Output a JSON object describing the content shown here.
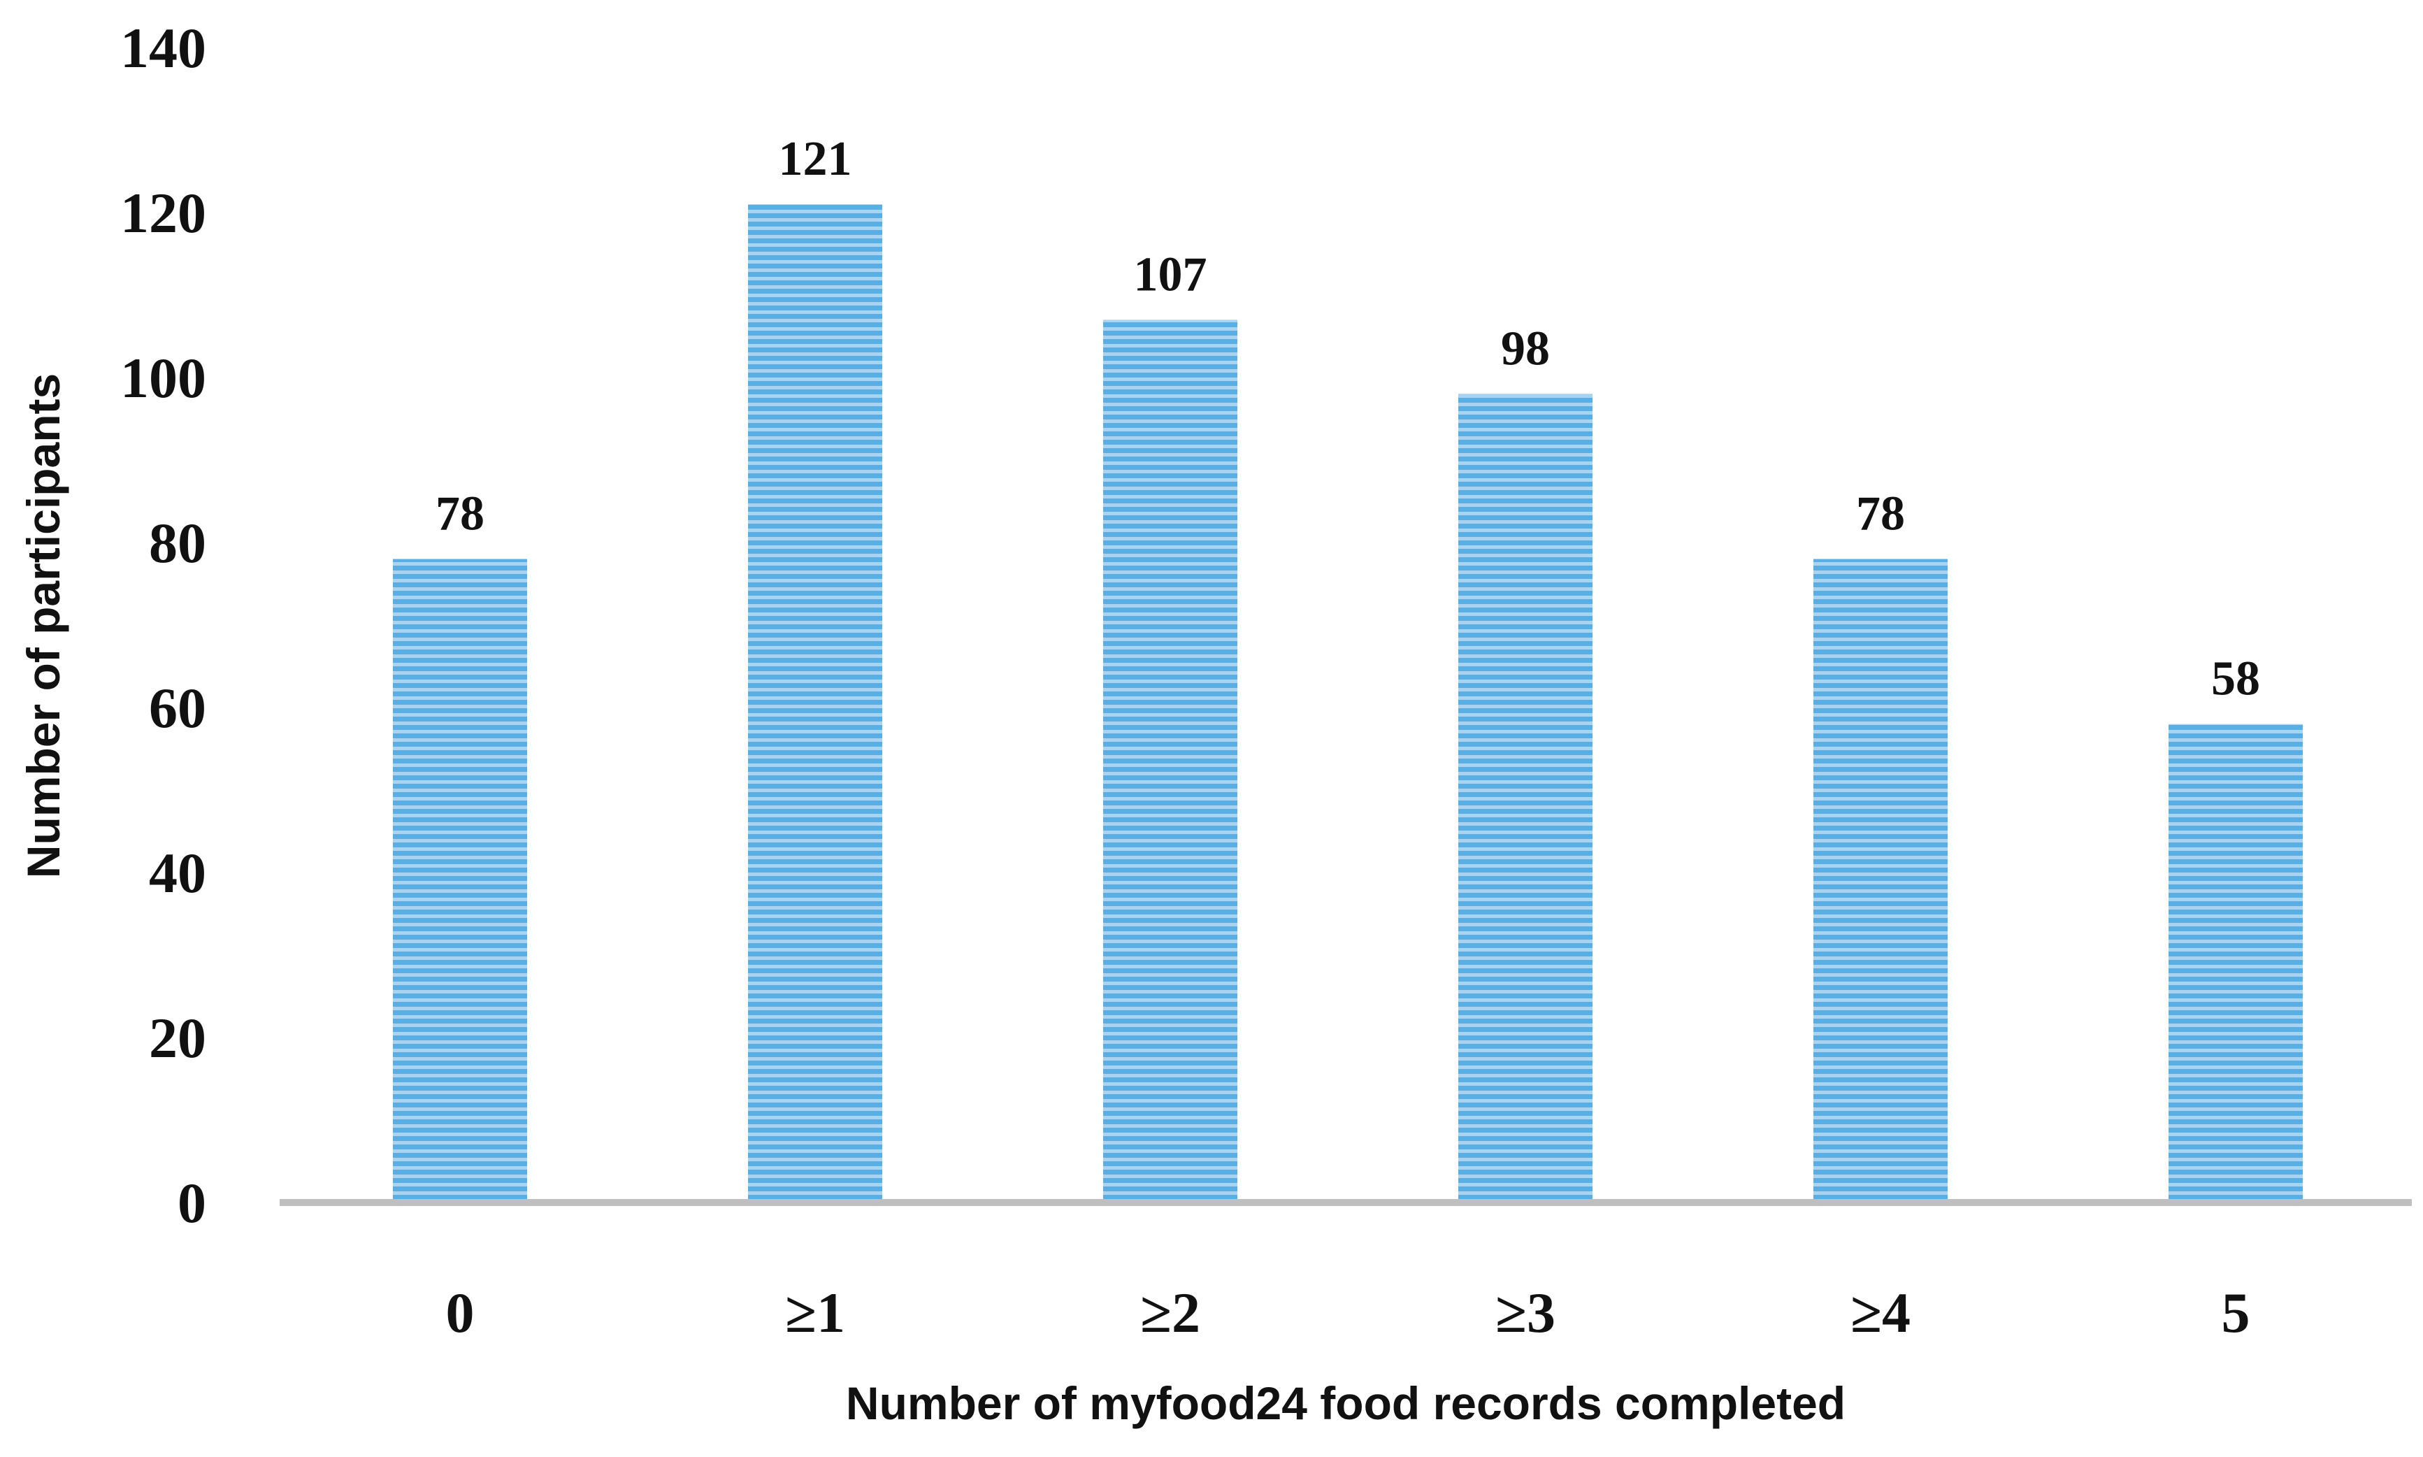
{
  "chart_data": {
    "type": "bar",
    "title": "",
    "xlabel": "Number of myfood24 food records completed",
    "ylabel": "Number of participants",
    "categories": [
      "0",
      "≥1",
      "≥2",
      "≥3",
      "≥4",
      "5"
    ],
    "values": [
      78,
      121,
      107,
      98,
      78,
      58
    ],
    "data_labels": [
      "78",
      "121",
      "107",
      "98",
      "78",
      "58"
    ],
    "ylim": [
      0,
      140
    ],
    "yticks": [
      0,
      20,
      40,
      60,
      80,
      100,
      120,
      140
    ],
    "ytick_labels": [
      "0",
      "20",
      "40",
      "60",
      "80",
      "100",
      "120",
      "140"
    ],
    "grid": false,
    "legend": "none",
    "bar_color": "#5aaee6",
    "bar_stripe_color": "#a8d4f2",
    "axis_color": "#bfbfbf"
  }
}
